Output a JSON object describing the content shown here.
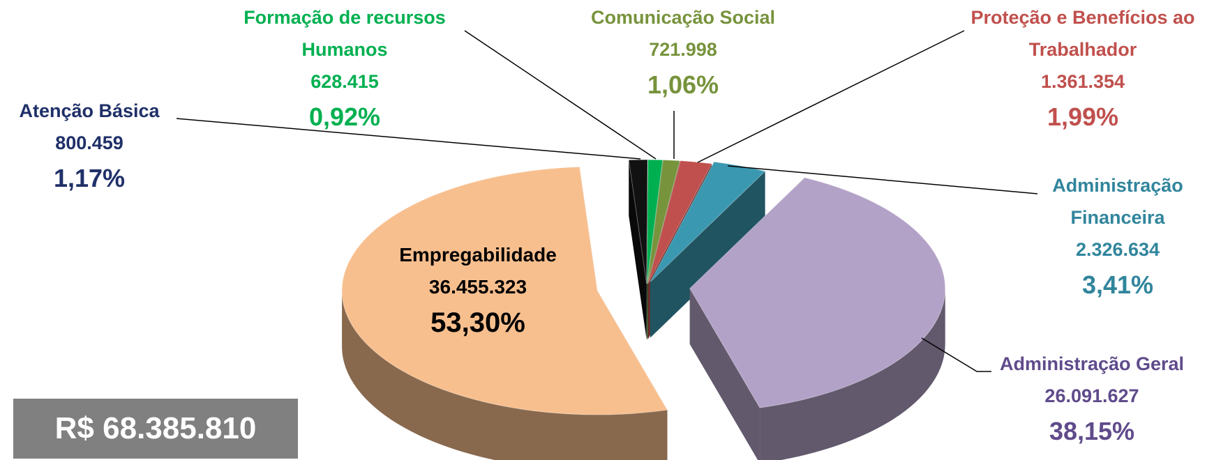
{
  "chart_data": {
    "type": "pie",
    "categories": [
      "Atenção Básica",
      "Formação de recursos Humanos",
      "Comunicação Social",
      "Proteção e Benefícios ao Trabalhador",
      "Administração Financeira",
      "Administração Geral",
      "Empregabilidade"
    ],
    "values": [
      800459,
      628415,
      721998,
      1361354,
      2326634,
      26091627,
      36455323
    ],
    "value_labels": [
      "800.459",
      "628.415",
      "721.998",
      "1.361.354",
      "2.326.634",
      "26.091.627",
      "36.455.323"
    ],
    "percents": [
      1.17,
      0.92,
      1.06,
      1.99,
      3.41,
      38.15,
      53.3
    ],
    "percent_labels": [
      "1,17%",
      "0,92%",
      "1,06%",
      "1,99%",
      "3,41%",
      "38,15%",
      "53,30%"
    ],
    "colors": [
      "#111111",
      "#00b050",
      "#77933c",
      "#c0504d",
      "#3a98b0",
      "#b3a2c7",
      "#f8bf8e"
    ],
    "label_colors": [
      "#1f3068",
      "#00b050",
      "#77933c",
      "#c0504d",
      "#31859c",
      "#5f4b8b",
      "#000000"
    ],
    "total_label": "R$ 68.385.810"
  }
}
